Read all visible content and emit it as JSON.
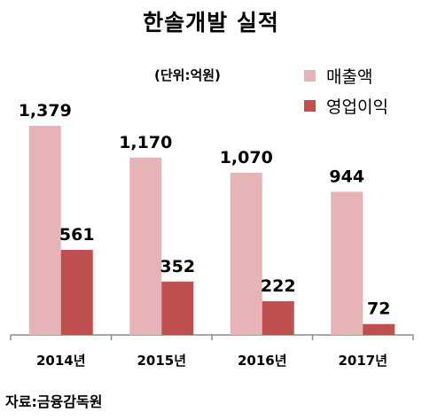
{
  "colors": {
    "sales": "#e6b4b6",
    "operating_profit": "#c0504d",
    "axis": "#8c8c8c"
  },
  "chart_data": {
    "type": "bar",
    "title": "한솔개발 실적",
    "unit_note": "(단위:억원)",
    "source": "자료:금융감독원",
    "categories": [
      "2014년",
      "2015년",
      "2016년",
      "2017년"
    ],
    "series": [
      {
        "name": "매출액",
        "values": [
          1379,
          1170,
          1070,
          944
        ],
        "labels": [
          "1,379",
          "1,170",
          "1,070",
          "944"
        ]
      },
      {
        "name": "영업이익",
        "values": [
          561,
          352,
          222,
          72
        ],
        "labels": [
          "561",
          "352",
          "222",
          "72"
        ]
      }
    ],
    "ylim": [
      0,
      1379
    ],
    "legend_position": "top-right",
    "grid": false
  }
}
